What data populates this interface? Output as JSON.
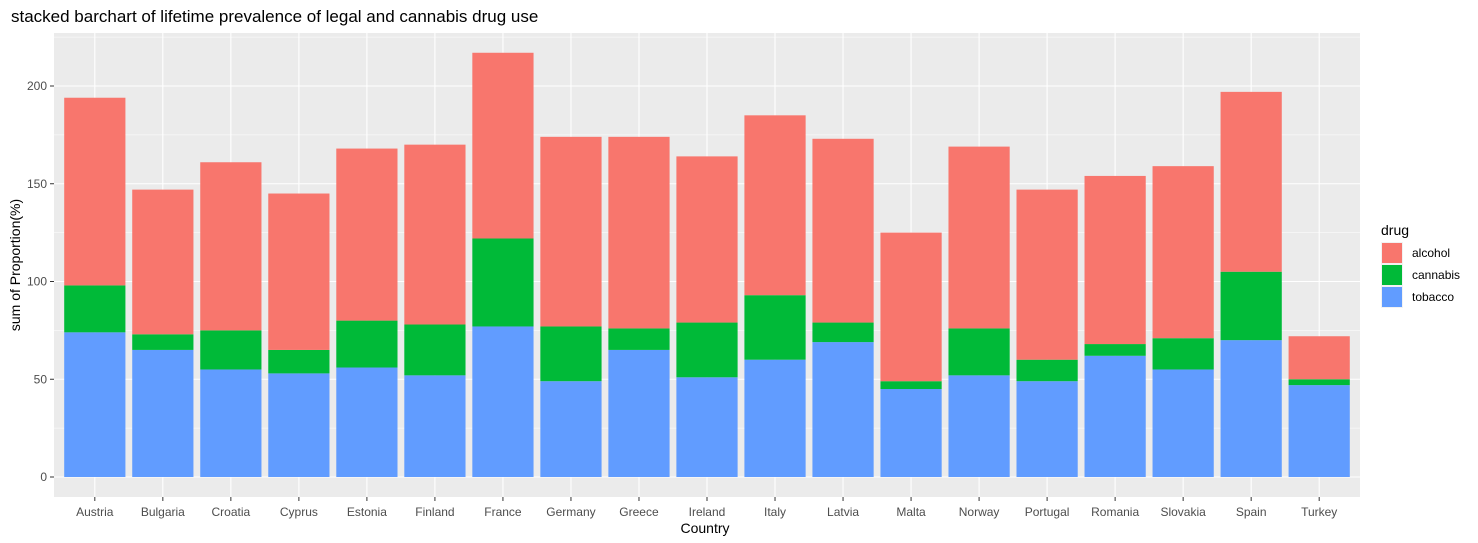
{
  "chart_data": {
    "type": "bar",
    "stacked": true,
    "title": "stacked barchart of lifetime prevalence of legal and cannabis drug use",
    "xlabel": "Country",
    "ylabel": "sum of Proportion(%)",
    "ylim": [
      0,
      226
    ],
    "yticks": [
      0,
      50,
      100,
      150,
      200
    ],
    "grid": true,
    "legend_position": "right",
    "legend_title": "drug",
    "categories": [
      "Austria",
      "Bulgaria",
      "Croatia",
      "Cyprus",
      "Estonia",
      "Finland",
      "France",
      "Germany",
      "Greece",
      "Ireland",
      "Italy",
      "Latvia",
      "Malta",
      "Norway",
      "Portugal",
      "Romania",
      "Slovakia",
      "Spain",
      "Turkey"
    ],
    "series": [
      {
        "name": "tobacco",
        "color": "#619CFF",
        "values": [
          74,
          65,
          55,
          53,
          56,
          52,
          77,
          49,
          65,
          51,
          60,
          69,
          45,
          52,
          49,
          62,
          55,
          70,
          47
        ]
      },
      {
        "name": "cannabis",
        "color": "#00BA38",
        "values": [
          24,
          8,
          20,
          12,
          24,
          26,
          45,
          28,
          11,
          28,
          33,
          10,
          4,
          24,
          11,
          6,
          16,
          35,
          3
        ]
      },
      {
        "name": "alcohol",
        "color": "#F8766D",
        "values": [
          96,
          74,
          86,
          80,
          88,
          92,
          95,
          97,
          98,
          85,
          92,
          94,
          76,
          93,
          87,
          86,
          88,
          92,
          22
        ]
      }
    ],
    "legend_order": [
      "alcohol",
      "cannabis",
      "tobacco"
    ]
  }
}
